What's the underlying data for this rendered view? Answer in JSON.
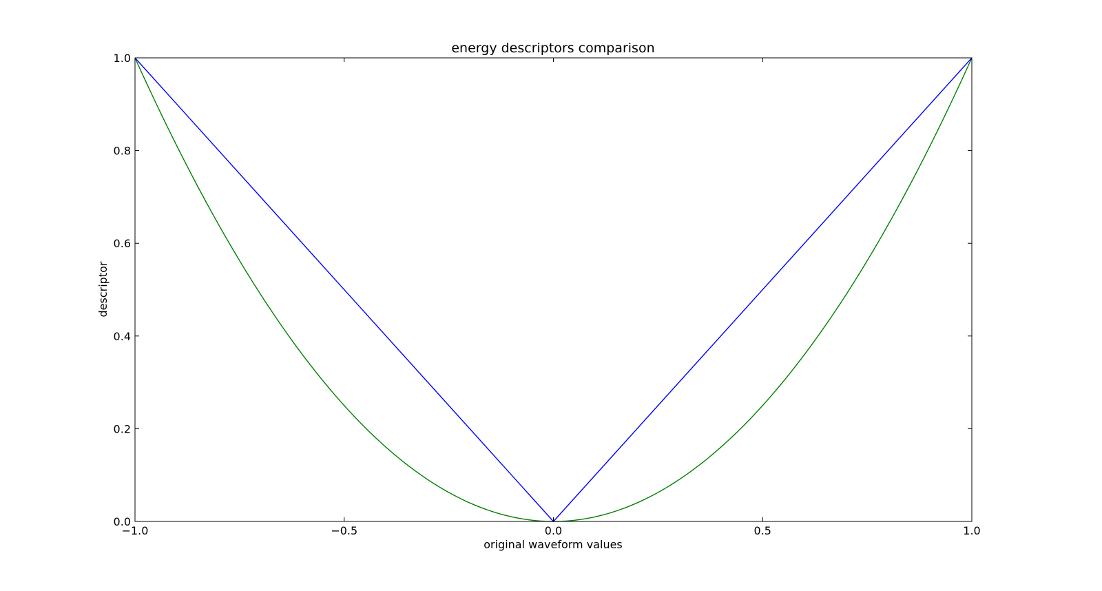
{
  "chart_data": {
    "type": "line",
    "title": "energy descriptors comparison",
    "xlabel": "original waveform values",
    "ylabel": "descriptor",
    "xlim": [
      -1.0,
      1.0
    ],
    "ylim": [
      0.0,
      1.0
    ],
    "xticks": [
      "−1.0",
      "−0.5",
      "0.0",
      "0.5",
      "1.0"
    ],
    "yticks": [
      "0.0",
      "0.2",
      "0.4",
      "0.6",
      "0.8",
      "1.0"
    ],
    "grid": false,
    "series": [
      {
        "color": "#0000ff",
        "x": [
          -1.0,
          0.0,
          1.0
        ],
        "y": [
          1.0,
          0.0,
          1.0
        ]
      },
      {
        "color": "#008000",
        "x": [
          -1.0,
          -0.9,
          -0.8,
          -0.7,
          -0.6,
          -0.5,
          -0.4,
          -0.3,
          -0.2,
          -0.1,
          0.0,
          0.1,
          0.2,
          0.3,
          0.4,
          0.5,
          0.6,
          0.7,
          0.8,
          0.9,
          1.0
        ],
        "y": [
          1.0,
          0.81,
          0.64,
          0.49,
          0.36,
          0.25,
          0.16,
          0.09,
          0.04,
          0.01,
          0.0,
          0.01,
          0.04,
          0.09,
          0.16,
          0.25,
          0.36,
          0.49,
          0.64,
          0.81,
          1.0
        ]
      }
    ]
  }
}
